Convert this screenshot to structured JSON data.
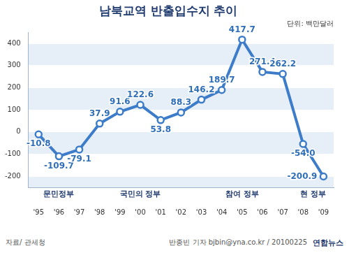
{
  "chart_data": {
    "type": "line",
    "title": "남북교역 반출입수지 추이",
    "subtitle": "단위: 백만달러",
    "categories": [
      "'95",
      "'96",
      "'97",
      "'98",
      "'99",
      "'00",
      "'01",
      "'02",
      "'03",
      "'04",
      "'05",
      "'06",
      "'07",
      "'08",
      "'09"
    ],
    "values": [
      -10.8,
      -109.7,
      -79.1,
      37.9,
      91.6,
      122.6,
      53.8,
      88.3,
      146.2,
      189.7,
      417.7,
      271.4,
      262.2,
      -54.0,
      -200.9
    ],
    "value_labels": [
      "-10.8",
      "-109.7",
      "-79.1",
      "37.9",
      "91.6",
      "122.6",
      "53.8",
      "88.3",
      "146.2",
      "189.7",
      "417.7",
      "271.4",
      "262.2",
      "-54.0",
      "-200.9"
    ],
    "color": "#3d7cc9",
    "marker": "circle",
    "ylim": [
      -250,
      450
    ],
    "yticks": [
      -200,
      -100,
      0,
      100,
      200,
      300,
      400
    ],
    "grid": true,
    "data_labels": true,
    "periods": [
      {
        "label": "문민정부",
        "start": "'95",
        "end": "'97"
      },
      {
        "label": "국민의 정부",
        "start": "'98",
        "end": "'02"
      },
      {
        "label": "참여 정부",
        "start": "'03",
        "end": "'07"
      },
      {
        "label": "현 정부",
        "start": "'08",
        "end": "'09"
      }
    ],
    "source": "자료/ 관세청",
    "credit": "반종빈 기자 bjbin@yna.co.kr / 20100225",
    "logo": "연합뉴스"
  }
}
